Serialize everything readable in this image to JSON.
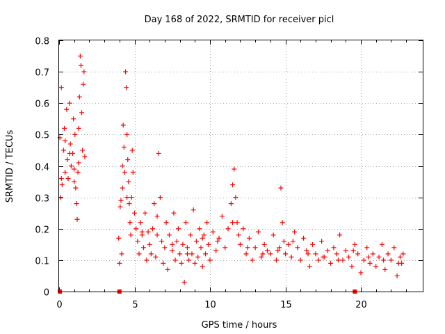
{
  "chart_data": {
    "type": "scatter",
    "title": "Day 168 of 2022, SRMTID for receiver picl",
    "xlabel": "GPS time / hours",
    "ylabel": "SRMTID / TECUs",
    "xlim": [
      0,
      24.1
    ],
    "ylim": [
      0,
      0.8
    ],
    "xticks": [
      0,
      5,
      10,
      15,
      20
    ],
    "xtick_labels": [
      "0",
      "5",
      "10",
      "15",
      "20"
    ],
    "yticks": [
      0,
      0.1,
      0.2,
      0.3,
      0.4,
      0.5,
      0.6,
      0.7,
      0.8
    ],
    "ytick_labels": [
      "0",
      "0.1",
      "0.2",
      "0.3",
      "0.4",
      "0.5",
      "0.6",
      "0.7",
      "0.8"
    ],
    "grid": true,
    "marker": "+",
    "series_color": "#ff0000",
    "series": [
      {
        "name": "SRMTID",
        "x": [
          0.05,
          0.1,
          0.15,
          0.2,
          0.3,
          0.35,
          0.4,
          0.5,
          0.55,
          0.6,
          0.7,
          0.75,
          0.8,
          0.9,
          0.95,
          1.0,
          1.05,
          1.1,
          1.15,
          1.2,
          1.25,
          1.3,
          1.35,
          1.4,
          1.45,
          1.5,
          1.55,
          1.6,
          1.65,
          1.7,
          3.95,
          4.0,
          4.05,
          4.1,
          4.15,
          4.2,
          4.25,
          4.3,
          4.35,
          4.4,
          4.45,
          4.5,
          4.55,
          4.6,
          4.65,
          4.7,
          4.75,
          4.8,
          4.85,
          4.9,
          5.0,
          5.1,
          5.2,
          5.3,
          5.4,
          5.5,
          5.6,
          5.7,
          5.8,
          5.9,
          6.0,
          6.1,
          6.2,
          6.3,
          6.4,
          6.5,
          6.6,
          6.7,
          6.8,
          6.9,
          7.0,
          7.1,
          7.2,
          7.3,
          7.5,
          7.6,
          7.7,
          7.8,
          7.9,
          8.0,
          8.1,
          8.2,
          8.3,
          8.4,
          8.5,
          8.6,
          8.7,
          8.8,
          8.9,
          9.0,
          9.1,
          9.2,
          9.3,
          9.4,
          9.5,
          9.6,
          9.7,
          9.8,
          9.9,
          10.0,
          10.2,
          10.4,
          10.6,
          10.8,
          11.0,
          11.2,
          11.4,
          11.5,
          11.6,
          11.7,
          11.8,
          11.9,
          12.0,
          12.2,
          12.4,
          12.6,
          12.8,
          13.0,
          13.2,
          13.4,
          13.6,
          13.8,
          14.0,
          14.2,
          14.4,
          14.6,
          14.7,
          14.8,
          14.9,
          15.0,
          15.2,
          15.4,
          15.6,
          15.8,
          16.0,
          16.2,
          16.4,
          16.6,
          16.8,
          17.0,
          17.2,
          17.4,
          17.6,
          17.8,
          18.0,
          18.2,
          18.4,
          18.6,
          18.8,
          19.0,
          19.2,
          19.4,
          19.6,
          19.8,
          20.0,
          20.2,
          20.4,
          20.6,
          20.8,
          21.0,
          21.2,
          21.4,
          21.6,
          21.8,
          22.0,
          22.2,
          22.4,
          22.6,
          22.7,
          22.8,
          0.15,
          0.4,
          0.7,
          1.0,
          1.3,
          4.2,
          4.5,
          5.5,
          6.5,
          7.5,
          8.5,
          9.5,
          10.5,
          11.5,
          12.5,
          13.5,
          14.5,
          15.5,
          16.5,
          17.5,
          18.5,
          19.5,
          20.5,
          21.5,
          22.5
        ],
        "y": [
          0.49,
          0.3,
          0.65,
          0.34,
          0.45,
          0.52,
          0.38,
          0.58,
          0.42,
          0.36,
          0.6,
          0.47,
          0.4,
          0.44,
          0.55,
          0.35,
          0.5,
          0.33,
          0.28,
          0.23,
          0.38,
          0.41,
          0.62,
          0.75,
          0.72,
          0.57,
          0.45,
          0.66,
          0.7,
          0.43,
          0.17,
          0.09,
          0.27,
          0.29,
          0.12,
          0.33,
          0.53,
          0.46,
          0.38,
          0.7,
          0.65,
          0.5,
          0.42,
          0.35,
          0.28,
          0.22,
          0.18,
          0.3,
          0.45,
          0.38,
          0.25,
          0.2,
          0.16,
          0.12,
          0.22,
          0.18,
          0.14,
          0.25,
          0.1,
          0.19,
          0.15,
          0.12,
          0.2,
          0.28,
          0.11,
          0.18,
          0.44,
          0.3,
          0.16,
          0.09,
          0.14,
          0.22,
          0.07,
          0.18,
          0.13,
          0.25,
          0.1,
          0.16,
          0.2,
          0.12,
          0.09,
          0.15,
          0.03,
          0.22,
          0.14,
          0.1,
          0.18,
          0.12,
          0.26,
          0.09,
          0.16,
          0.11,
          0.2,
          0.14,
          0.08,
          0.18,
          0.12,
          0.22,
          0.15,
          0.1,
          0.19,
          0.13,
          0.17,
          0.24,
          0.14,
          0.2,
          0.28,
          0.34,
          0.39,
          0.3,
          0.22,
          0.18,
          0.15,
          0.2,
          0.12,
          0.17,
          0.1,
          0.14,
          0.19,
          0.11,
          0.15,
          0.13,
          0.12,
          0.18,
          0.1,
          0.14,
          0.33,
          0.22,
          0.16,
          0.12,
          0.15,
          0.11,
          0.19,
          0.14,
          0.1,
          0.17,
          0.13,
          0.08,
          0.15,
          0.12,
          0.1,
          0.16,
          0.11,
          0.13,
          0.09,
          0.14,
          0.12,
          0.18,
          0.1,
          0.13,
          0.11,
          0.08,
          0.15,
          0.12,
          0.06,
          0.1,
          0.14,
          0.09,
          0.12,
          0.08,
          0.11,
          0.15,
          0.07,
          0.12,
          0.1,
          0.14,
          0.05,
          0.11,
          0.09,
          0.12,
          0.36,
          0.48,
          0.44,
          0.39,
          0.52,
          0.4,
          0.3,
          0.19,
          0.24,
          0.15,
          0.12,
          0.17,
          0.16,
          0.22,
          0.14,
          0.12,
          0.13,
          0.16,
          0.12,
          0.11,
          0.1,
          0.13,
          0.11,
          0.1,
          0.09
        ]
      }
    ],
    "gap_markers_x": [
      0.05,
      4.0,
      19.6
    ]
  }
}
